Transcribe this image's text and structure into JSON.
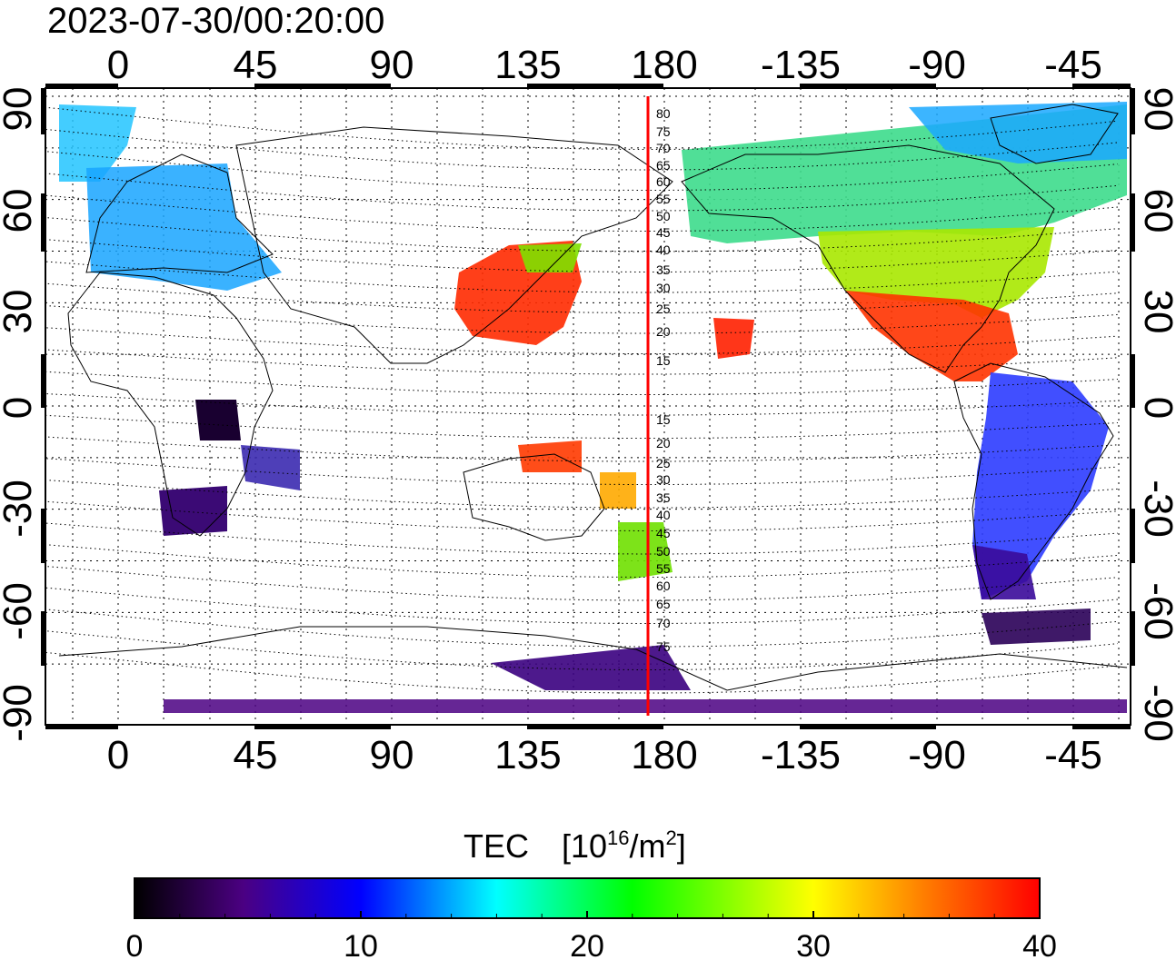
{
  "title": "2023-07-30/00:20:00",
  "top_axis": {
    "ticks": [
      "0",
      "45",
      "90",
      "135",
      "180",
      "-135",
      "-90",
      "-45"
    ]
  },
  "bottom_axis": {
    "ticks": [
      "0",
      "45",
      "90",
      "135",
      "180",
      "-135",
      "-90",
      "-45"
    ]
  },
  "left_axis": {
    "ticks": [
      "90",
      "60",
      "30",
      "0",
      "-30",
      "-60",
      "-90"
    ]
  },
  "right_axis": {
    "ticks": [
      "90",
      "60",
      "30",
      "0",
      "-30",
      "-60",
      "-90"
    ]
  },
  "terminator_labels": {
    "north": [
      "80",
      "75",
      "70",
      "65",
      "60",
      "55",
      "50",
      "45",
      "40",
      "35",
      "30",
      "25",
      "20",
      "15"
    ],
    "south": [
      "15",
      "20",
      "25",
      "30",
      "35",
      "40",
      "45",
      "50",
      "55",
      "60",
      "65",
      "70",
      "75"
    ]
  },
  "colorbar": {
    "title": "TEC",
    "unit_prefix": "[10",
    "unit_exp1": "16",
    "unit_mid": "/m",
    "unit_exp2": "2",
    "unit_suffix": "]",
    "ticks": [
      "0",
      "10",
      "20",
      "30",
      "40"
    ],
    "min": 0,
    "max": 40
  },
  "colors": {
    "stop0": "#000000",
    "stop1": "#4b0082",
    "stop2": "#0000ff",
    "stop3": "#00ffff",
    "stop4": "#00ff00",
    "stop5": "#ffff00",
    "stop6": "#ff8000",
    "stop7": "#ff0000",
    "meridian_line": "#ff0000"
  }
}
